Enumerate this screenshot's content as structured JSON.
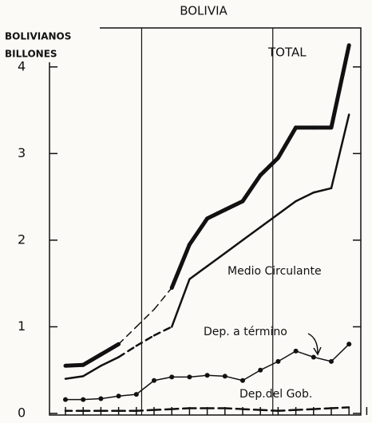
{
  "chart_data": {
    "type": "line",
    "title": "BOLIVIA",
    "y_label": [
      "BOLIVIANOS",
      "BILLONES"
    ],
    "categories": [
      null,
      null,
      null,
      null,
      null,
      null,
      null,
      null,
      null,
      null,
      null,
      null,
      null,
      null,
      null,
      null,
      null
    ],
    "ylim": [
      0,
      4.45
    ],
    "yticks": [
      0,
      1,
      2,
      3,
      4
    ],
    "vlines": [
      4.3,
      11.7
    ],
    "series": [
      {
        "name": "TOTAL",
        "color": "#111",
        "width": 5,
        "markers": false,
        "values": [
          0.55,
          0.56,
          0.68,
          0.8,
          1.0,
          1.2,
          1.45,
          1.95,
          2.25,
          2.35,
          2.45,
          2.75,
          2.95,
          3.3,
          3.3,
          3.3,
          4.25
        ],
        "line_style": [
          "solid",
          "solid",
          "solid",
          "solid",
          "dashed",
          "dashed",
          "dashed",
          "solid",
          "solid",
          "solid",
          "solid",
          "solid",
          "solid",
          "solid",
          "solid",
          "solid",
          "solid"
        ]
      },
      {
        "name": "Medio Circulante",
        "color": "#111",
        "width": 2.5,
        "markers": false,
        "values": [
          0.4,
          0.43,
          0.55,
          0.65,
          0.78,
          0.9,
          1.0,
          1.55,
          1.7,
          1.85,
          2.0,
          2.15,
          2.3,
          2.45,
          2.55,
          2.6,
          3.45
        ],
        "line_style": [
          "solid",
          "solid",
          "solid",
          "solid",
          "dashed",
          "dashed",
          "dashed",
          "solid",
          "solid",
          "solid",
          "solid",
          "solid",
          "solid",
          "solid",
          "solid",
          "solid",
          "solid"
        ]
      },
      {
        "name": "Dep. a término",
        "color": "#111",
        "width": 1.5,
        "markers": true,
        "values": [
          0.16,
          0.16,
          0.17,
          0.2,
          0.22,
          0.38,
          0.42,
          0.42,
          0.44,
          0.43,
          0.38,
          0.5,
          0.6,
          0.72,
          0.65,
          0.6,
          0.8
        ],
        "line_style": [
          "solid",
          "solid",
          "solid",
          "solid",
          "solid",
          "solid",
          "solid",
          "solid",
          "solid",
          "solid",
          "solid",
          "solid",
          "solid",
          "solid",
          "solid",
          "solid",
          "solid"
        ]
      },
      {
        "name": "Dep.del Gob.",
        "color": "#111",
        "width": 2.5,
        "markers": false,
        "values": [
          0.03,
          0.03,
          0.03,
          0.03,
          0.03,
          0.04,
          0.05,
          0.06,
          0.06,
          0.06,
          0.05,
          0.04,
          0.03,
          0.04,
          0.05,
          0.06,
          0.07
        ],
        "line_style": [
          "dashed",
          "dashed",
          "dashed",
          "dashed",
          "dashed",
          "dashed",
          "dashed",
          "dashed",
          "dashed",
          "dashed",
          "dashed",
          "dashed",
          "dashed",
          "dashed",
          "dashed",
          "dashed",
          "dashed"
        ]
      }
    ]
  }
}
